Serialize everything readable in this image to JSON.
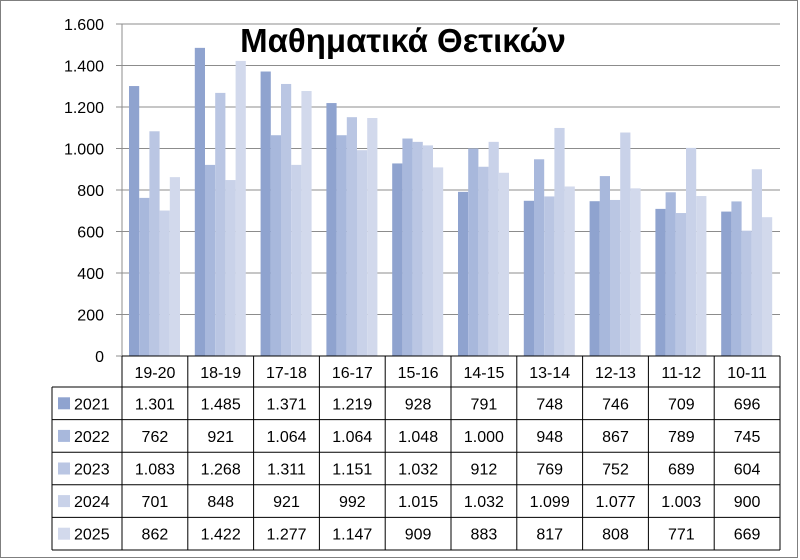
{
  "chart_data": {
    "type": "bar",
    "title": "Μαθηματικά Θετικών",
    "categories": [
      "19-20",
      "18-19",
      "17-18",
      "16-17",
      "15-16",
      "14-15",
      "13-14",
      "12-13",
      "11-12",
      "10-11"
    ],
    "series": [
      {
        "name": "2021",
        "color": "#8fa3cf",
        "values": [
          1301,
          1485,
          1371,
          1219,
          928,
          791,
          748,
          746,
          709,
          696
        ],
        "labels": [
          "1.301",
          "1.485",
          "1.371",
          "1.219",
          "928",
          "791",
          "748",
          "746",
          "709",
          "696"
        ]
      },
      {
        "name": "2022",
        "color": "#a8b8dc",
        "values": [
          762,
          921,
          1064,
          1064,
          1048,
          1000,
          948,
          867,
          789,
          745
        ],
        "labels": [
          "762",
          "921",
          "1.064",
          "1.064",
          "1.048",
          "1.000",
          "948",
          "867",
          "789",
          "745"
        ]
      },
      {
        "name": "2023",
        "color": "#bac6e3",
        "values": [
          1083,
          1268,
          1311,
          1151,
          1032,
          912,
          769,
          752,
          689,
          604
        ],
        "labels": [
          "1.083",
          "1.268",
          "1.311",
          "1.151",
          "1.032",
          "912",
          "769",
          "752",
          "689",
          "604"
        ]
      },
      {
        "name": "2024",
        "color": "#c9d2e9",
        "values": [
          701,
          848,
          921,
          992,
          1015,
          1032,
          1099,
          1077,
          1003,
          900
        ],
        "labels": [
          "701",
          "848",
          "921",
          "992",
          "1.015",
          "1.032",
          "1.099",
          "1.077",
          "1.003",
          "900"
        ]
      },
      {
        "name": "2025",
        "color": "#d2d9ec",
        "values": [
          862,
          1422,
          1277,
          1147,
          909,
          883,
          817,
          808,
          771,
          669
        ],
        "labels": [
          "862",
          "1.422",
          "1.277",
          "1.147",
          "909",
          "883",
          "817",
          "808",
          "771",
          "669"
        ]
      }
    ],
    "ylim": [
      0,
      1600
    ],
    "yticks": [
      0,
      200,
      400,
      600,
      800,
      1000,
      1200,
      1400,
      1600
    ],
    "ytick_labels": [
      "0",
      "200",
      "400",
      "600",
      "800",
      "1.000",
      "1.200",
      "1.400",
      "1.600"
    ],
    "grid": true,
    "legend": "data-table"
  }
}
